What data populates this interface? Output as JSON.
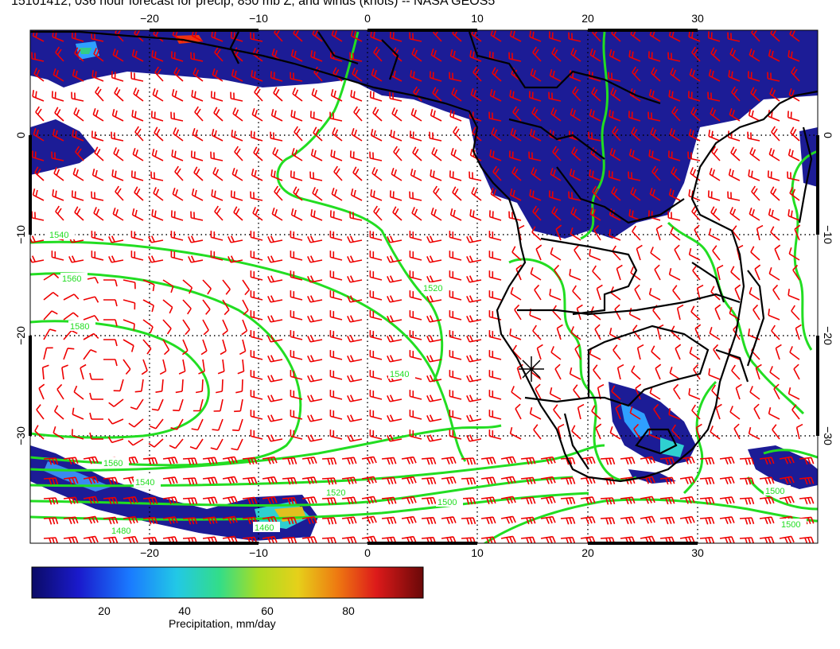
{
  "title": "15101412, 036 hour forecast for precip, 850 mb Z, and winds (knots) -- NASA GEOS5",
  "map": {
    "lon_ticks": [
      "−20",
      "−10",
      "0",
      "10",
      "20",
      "30"
    ],
    "lat_ticks": [
      "0",
      "−10",
      "−20",
      "−30"
    ],
    "contour_labels": [
      "1540",
      "1560",
      "1580",
      "1520",
      "1540",
      "1560",
      "1540",
      "1520",
      "1500",
      "1460",
      "1480",
      "1500",
      "1500"
    ],
    "colors": {
      "ocean": "#ffffff",
      "precip_low": "#1a1a8c",
      "contour": "#22dd22",
      "wind_barb": "#ee0000",
      "coastline": "#000000"
    },
    "marker_icon": "star-marker"
  },
  "colorbar": {
    "title": "Precipitation, mm/day",
    "ticks": [
      "20",
      "40",
      "60",
      "80"
    ],
    "colors": [
      "#0b0b66",
      "#1a1acc",
      "#1a7aff",
      "#22c8e6",
      "#33dd88",
      "#aadd22",
      "#e6d01a",
      "#ee7a11",
      "#dd1a1a",
      "#7a0a0a"
    ]
  }
}
